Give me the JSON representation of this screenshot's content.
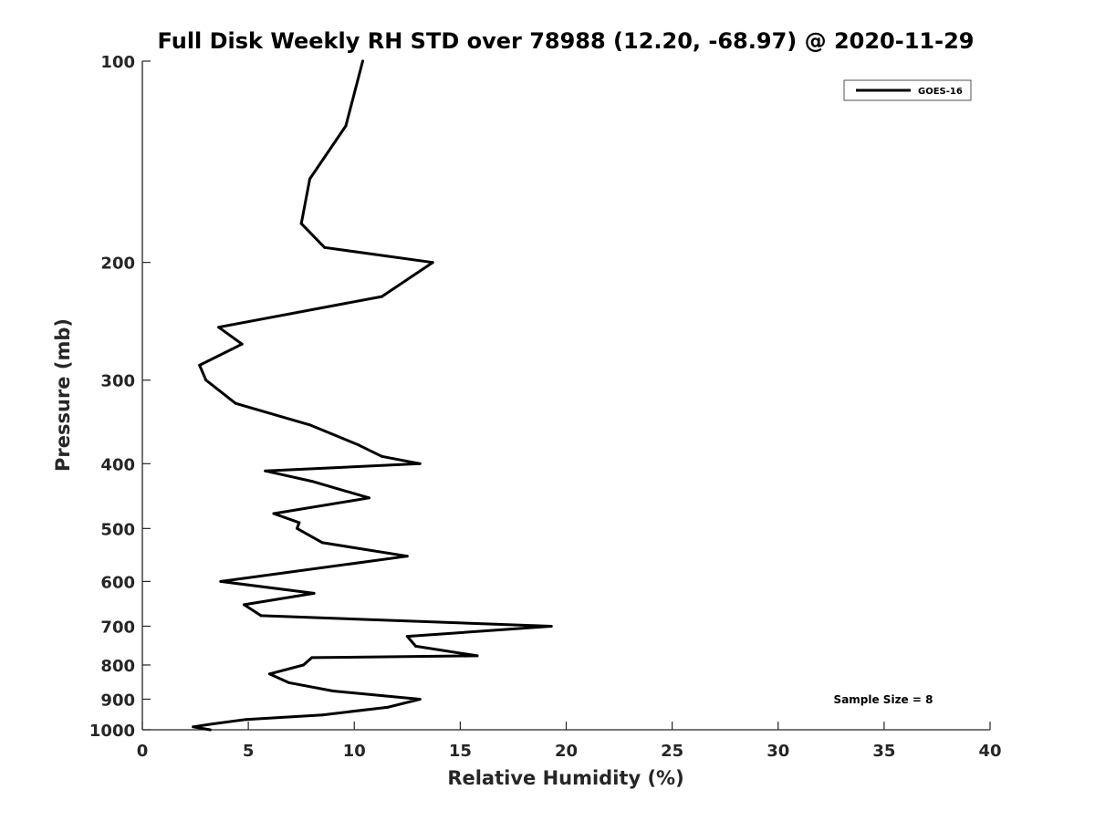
{
  "chart_data": {
    "type": "line",
    "title": "Full Disk Weekly RH STD over 78988 (12.20, -68.97) @ 2020-11-29",
    "xlabel": "Relative Humidity (%)",
    "ylabel": "Pressure (mb)",
    "xlim": [
      0,
      40
    ],
    "ylim": [
      100,
      1000
    ],
    "y_scale": "log",
    "y_reversed": true,
    "x_ticks": [
      0,
      5,
      10,
      15,
      20,
      25,
      30,
      35,
      40
    ],
    "y_ticks": [
      100,
      200,
      300,
      400,
      500,
      600,
      700,
      800,
      900,
      1000
    ],
    "grid": false,
    "legend_position": "top-right",
    "annotation": "Sample Size = 8",
    "series": [
      {
        "name": "GOES-16",
        "color": "#000000",
        "points": [
          [
            10.4,
            100
          ],
          [
            9.6,
            125
          ],
          [
            7.9,
            150
          ],
          [
            7.5,
            175
          ],
          [
            8.6,
            190
          ],
          [
            13.7,
            200
          ],
          [
            11.3,
            225
          ],
          [
            3.6,
            250
          ],
          [
            4.7,
            265
          ],
          [
            2.7,
            285
          ],
          [
            3.0,
            300
          ],
          [
            4.4,
            325
          ],
          [
            7.9,
            350
          ],
          [
            10.2,
            375
          ],
          [
            11.3,
            390
          ],
          [
            13.1,
            400
          ],
          [
            5.8,
            410
          ],
          [
            8.0,
            425
          ],
          [
            10.7,
            450
          ],
          [
            6.2,
            475
          ],
          [
            7.4,
            490
          ],
          [
            7.3,
            500
          ],
          [
            8.5,
            525
          ],
          [
            12.5,
            550
          ],
          [
            3.7,
            600
          ],
          [
            8.1,
            625
          ],
          [
            4.8,
            650
          ],
          [
            5.6,
            675
          ],
          [
            19.3,
            700
          ],
          [
            12.5,
            725
          ],
          [
            12.9,
            750
          ],
          [
            15.8,
            775
          ],
          [
            8.0,
            780
          ],
          [
            7.6,
            800
          ],
          [
            6.0,
            825
          ],
          [
            6.9,
            850
          ],
          [
            9.0,
            875
          ],
          [
            13.1,
            900
          ],
          [
            11.6,
            925
          ],
          [
            8.5,
            950
          ],
          [
            4.9,
            965
          ],
          [
            3.3,
            980
          ],
          [
            2.4,
            990
          ],
          [
            3.2,
            1000
          ]
        ]
      }
    ]
  }
}
